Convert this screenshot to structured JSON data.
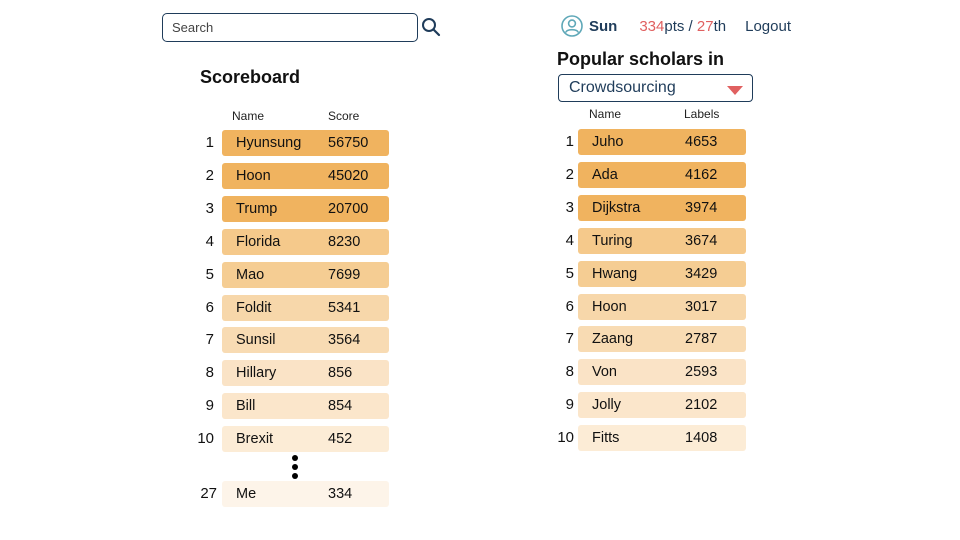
{
  "search": {
    "placeholder": "Search"
  },
  "user": {
    "name": "Sun",
    "points": "334",
    "points_unit": "pts",
    "separator": " / ",
    "rank": "27",
    "rank_suffix": "th",
    "logout_label": "Logout"
  },
  "scoreboard": {
    "title": "Scoreboard",
    "columns": {
      "name": "Name",
      "score": "Score"
    },
    "rows": [
      {
        "rank": "1",
        "name": "Hyunsung",
        "score": "56750"
      },
      {
        "rank": "2",
        "name": "Hoon",
        "score": "45020"
      },
      {
        "rank": "3",
        "name": "Trump",
        "score": "20700"
      },
      {
        "rank": "4",
        "name": "Florida",
        "score": "8230"
      },
      {
        "rank": "5",
        "name": "Mao",
        "score": "7699"
      },
      {
        "rank": "6",
        "name": "Foldit",
        "score": "5341"
      },
      {
        "rank": "7",
        "name": "Sunsil",
        "score": "3564"
      },
      {
        "rank": "8",
        "name": "Hillary",
        "score": "856"
      },
      {
        "rank": "9",
        "name": "Bill",
        "score": "854"
      },
      {
        "rank": "10",
        "name": "Brexit",
        "score": "452"
      }
    ],
    "me": {
      "rank": "27",
      "name": "Me",
      "score": "334"
    }
  },
  "popular": {
    "title": "Popular scholars in",
    "category_selected": "Crowdsourcing",
    "columns": {
      "name": "Name",
      "labels": "Labels"
    },
    "rows": [
      {
        "rank": "1",
        "name": "Juho",
        "labels": "4653"
      },
      {
        "rank": "2",
        "name": "Ada",
        "labels": "4162"
      },
      {
        "rank": "3",
        "name": "Dijkstra",
        "labels": "3974"
      },
      {
        "rank": "4",
        "name": "Turing",
        "labels": "3674"
      },
      {
        "rank": "5",
        "name": "Hwang",
        "labels": "3429"
      },
      {
        "rank": "6",
        "name": "Hoon",
        "labels": "3017"
      },
      {
        "rank": "7",
        "name": "Zaang",
        "labels": "2787"
      },
      {
        "rank": "8",
        "name": "Von",
        "labels": "2593"
      },
      {
        "rank": "9",
        "name": "Jolly",
        "labels": "2102"
      },
      {
        "rank": "10",
        "name": "Fitts",
        "labels": "1408"
      }
    ]
  },
  "colors": {
    "navy": "#1f3c5a",
    "accent_red": "#e06060",
    "avatar": "#5fa8b8",
    "bar_shades": [
      "#f0b35f",
      "#f0b35f",
      "#f0b35f",
      "#f5c98b",
      "#f5cd93",
      "#f7d7aa",
      "#f8dbb3",
      "#fae3c6",
      "#fbe6cb",
      "#fcecd6"
    ],
    "me_bar": "#fdf4e9"
  },
  "icons": {
    "search": "magnifier-icon",
    "avatar": "user-avatar-icon",
    "dropdown": "triangle-down-icon"
  }
}
